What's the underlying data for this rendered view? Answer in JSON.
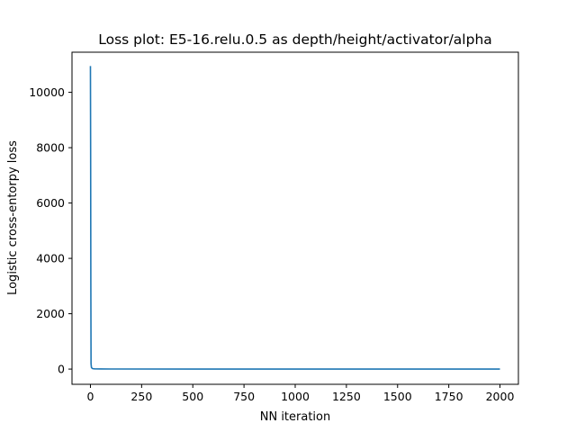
{
  "chart_data": {
    "type": "line",
    "title": "Loss plot: E5-16.relu.0.5 as depth/height/activator/alpha",
    "xlabel": "NN iteration",
    "ylabel": "Logistic cross-entorpy loss",
    "xlim": [
      -90,
      2090
    ],
    "ylim": [
      -550,
      11450
    ],
    "xticks": [
      0,
      250,
      500,
      750,
      1000,
      1250,
      1500,
      1750,
      2000
    ],
    "yticks": [
      0,
      2000,
      4000,
      6000,
      8000,
      10000
    ],
    "grid": false,
    "series": [
      {
        "color": "#1f77b4",
        "x": [
          0,
          1,
          2,
          3,
          4,
          5,
          8,
          12,
          20,
          50,
          100,
          500,
          1000,
          1500,
          2000
        ],
        "y": [
          10950,
          8000,
          3000,
          200,
          120,
          60,
          30,
          15,
          8,
          5,
          3,
          2,
          2,
          2,
          2
        ]
      }
    ]
  }
}
